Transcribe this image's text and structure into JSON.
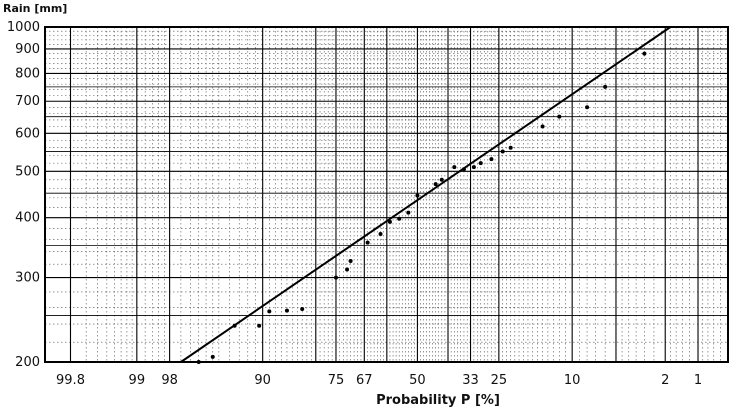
{
  "chart_data": {
    "type": "scatter",
    "title": "",
    "ylabel": "Rain [mm]",
    "xlabel": "Probability  P [%]",
    "yscale": "log",
    "xscale": "normal-probability",
    "ylim": [
      200,
      1000
    ],
    "xlim": [
      99.9,
      0.5
    ],
    "x_ticks": [
      "99.8",
      "99",
      "98",
      "90",
      "75",
      "67",
      "50",
      "33",
      "25",
      "10",
      "2",
      "1"
    ],
    "y_ticks": [
      "200",
      "300",
      "400",
      "500",
      "600",
      "700",
      "800",
      "900",
      "1000"
    ],
    "grid": true,
    "legend": "none",
    "fit_line": {
      "x": [
        97.5,
        1.8
      ],
      "y": [
        200,
        1000
      ]
    },
    "series": [
      {
        "points": [
          {
            "x": 96.5,
            "y": 200
          },
          {
            "x": 95.5,
            "y": 205
          },
          {
            "x": 93.5,
            "y": 238
          },
          {
            "x": 90.5,
            "y": 238
          },
          {
            "x": 89,
            "y": 255
          },
          {
            "x": 86,
            "y": 256
          },
          {
            "x": 83,
            "y": 258
          },
          {
            "x": 75,
            "y": 300
          },
          {
            "x": 72,
            "y": 312
          },
          {
            "x": 71,
            "y": 325
          },
          {
            "x": 66,
            "y": 355
          },
          {
            "x": 62,
            "y": 370
          },
          {
            "x": 59,
            "y": 392
          },
          {
            "x": 56,
            "y": 398
          },
          {
            "x": 53,
            "y": 410
          },
          {
            "x": 50,
            "y": 445
          },
          {
            "x": 44,
            "y": 470
          },
          {
            "x": 42,
            "y": 480
          },
          {
            "x": 38,
            "y": 510
          },
          {
            "x": 35,
            "y": 505
          },
          {
            "x": 32,
            "y": 510
          },
          {
            "x": 30,
            "y": 520
          },
          {
            "x": 27,
            "y": 530
          },
          {
            "x": 24,
            "y": 550
          },
          {
            "x": 22,
            "y": 560
          },
          {
            "x": 15,
            "y": 620
          },
          {
            "x": 12,
            "y": 650
          },
          {
            "x": 8,
            "y": 680
          },
          {
            "x": 6,
            "y": 750
          },
          {
            "x": 3,
            "y": 880
          }
        ]
      }
    ]
  }
}
